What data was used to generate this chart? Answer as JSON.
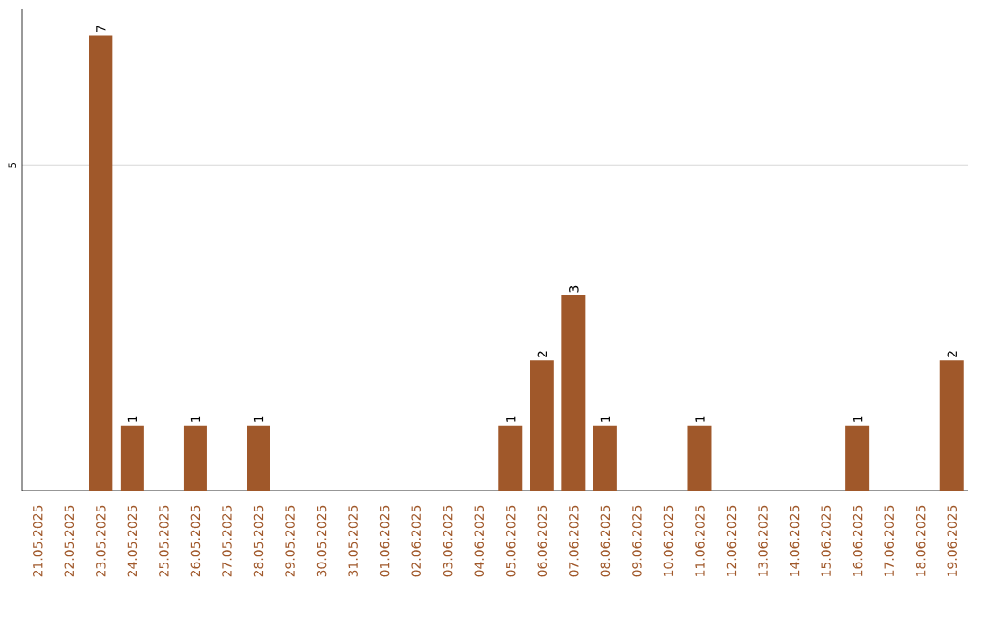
{
  "chart_data": {
    "type": "bar",
    "categories": [
      "21.05.2025",
      "22.05.2025",
      "23.05.2025",
      "24.05.2025",
      "25.05.2025",
      "26.05.2025",
      "27.05.2025",
      "28.05.2025",
      "29.05.2025",
      "30.05.2025",
      "31.05.2025",
      "01.06.2025",
      "02.06.2025",
      "03.06.2025",
      "04.06.2025",
      "05.06.2025",
      "06.06.2025",
      "07.06.2025",
      "08.06.2025",
      "09.06.2025",
      "10.06.2025",
      "11.06.2025",
      "12.06.2025",
      "13.06.2025",
      "14.06.2025",
      "15.06.2025",
      "16.06.2025",
      "17.06.2025",
      "18.06.2025",
      "19.06.2025"
    ],
    "values": [
      0,
      0,
      7,
      1,
      0,
      1,
      0,
      1,
      0,
      0,
      0,
      0,
      0,
      0,
      0,
      1,
      2,
      3,
      1,
      0,
      0,
      1,
      0,
      0,
      0,
      0,
      1,
      0,
      0,
      2
    ],
    "value_labels": [
      null,
      null,
      "7",
      "1",
      null,
      "1",
      null,
      "1",
      null,
      null,
      null,
      null,
      null,
      null,
      null,
      "1",
      "2",
      "3",
      "1",
      null,
      null,
      "1",
      null,
      null,
      null,
      null,
      "1",
      null,
      null,
      "2"
    ],
    "color": "#a0582a",
    "ylim": [
      0,
      7.4
    ],
    "yticks": [
      5
    ],
    "grid": "y"
  }
}
